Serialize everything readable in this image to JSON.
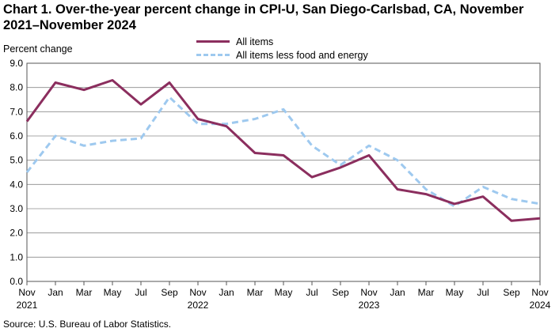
{
  "header": {
    "title_line1": "Chart 1. Over-the-year percent change in CPI-U, San Diego-Carlsbad, CA, November",
    "title_line2": "2021–November 2024"
  },
  "footer": {
    "source": "Source: U.S. Bureau of Labor Statistics."
  },
  "colors": {
    "all_items": "#8b2e5e",
    "less_food_energy": "#9ec9ef",
    "grid": "#8c8c8c"
  },
  "chart_data": {
    "type": "line",
    "title": "Chart 1. Over-the-year percent change in CPI-U, San Diego-Carlsbad, CA, November 2021–November 2024",
    "ylabel": "Percent change",
    "xlabel": "",
    "ylim": [
      0.0,
      9.0
    ],
    "y_ticks": [
      "0.0",
      "1.0",
      "2.0",
      "3.0",
      "4.0",
      "5.0",
      "6.0",
      "7.0",
      "8.0",
      "9.0"
    ],
    "grid": true,
    "legend_position": "top-center",
    "categories": [
      "Nov 2021",
      "Jan 2022",
      "Mar 2022",
      "May 2022",
      "Jul 2022",
      "Sep 2022",
      "Nov 2022",
      "Jan 2023",
      "Mar 2023",
      "May 2023",
      "Jul 2023",
      "Sep 2023",
      "Nov 2023",
      "Jan 2024",
      "Mar 2024",
      "May 2024",
      "Jul 2024",
      "Sep 2024",
      "Nov 2024"
    ],
    "x_tick_labels": [
      {
        "line1": "Nov",
        "line2": "2021"
      },
      {
        "line1": "Jan",
        "line2": ""
      },
      {
        "line1": "Mar",
        "line2": ""
      },
      {
        "line1": "May",
        "line2": ""
      },
      {
        "line1": "Jul",
        "line2": ""
      },
      {
        "line1": "Sep",
        "line2": ""
      },
      {
        "line1": "Nov",
        "line2": "2022"
      },
      {
        "line1": "Jan",
        "line2": ""
      },
      {
        "line1": "Mar",
        "line2": ""
      },
      {
        "line1": "May",
        "line2": ""
      },
      {
        "line1": "Jul",
        "line2": ""
      },
      {
        "line1": "Sep",
        "line2": ""
      },
      {
        "line1": "Nov",
        "line2": "2023"
      },
      {
        "line1": "Jan",
        "line2": ""
      },
      {
        "line1": "Mar",
        "line2": ""
      },
      {
        "line1": "May",
        "line2": ""
      },
      {
        "line1": "Jul",
        "line2": ""
      },
      {
        "line1": "Sep",
        "line2": ""
      },
      {
        "line1": "Nov",
        "line2": "2024"
      }
    ],
    "series": [
      {
        "name": "All items",
        "style": "solid",
        "values": [
          6.6,
          8.2,
          7.9,
          8.3,
          7.3,
          8.2,
          6.7,
          6.4,
          5.3,
          5.2,
          4.3,
          4.7,
          5.2,
          3.8,
          3.6,
          3.2,
          3.5,
          2.5,
          2.6
        ]
      },
      {
        "name": "All items less food and energy",
        "style": "dashed",
        "values": [
          4.5,
          6.0,
          5.6,
          5.8,
          5.9,
          7.6,
          6.5,
          6.5,
          6.7,
          7.1,
          5.6,
          4.8,
          5.6,
          5.0,
          3.8,
          3.1,
          3.9,
          3.4,
          3.2
        ]
      }
    ]
  }
}
